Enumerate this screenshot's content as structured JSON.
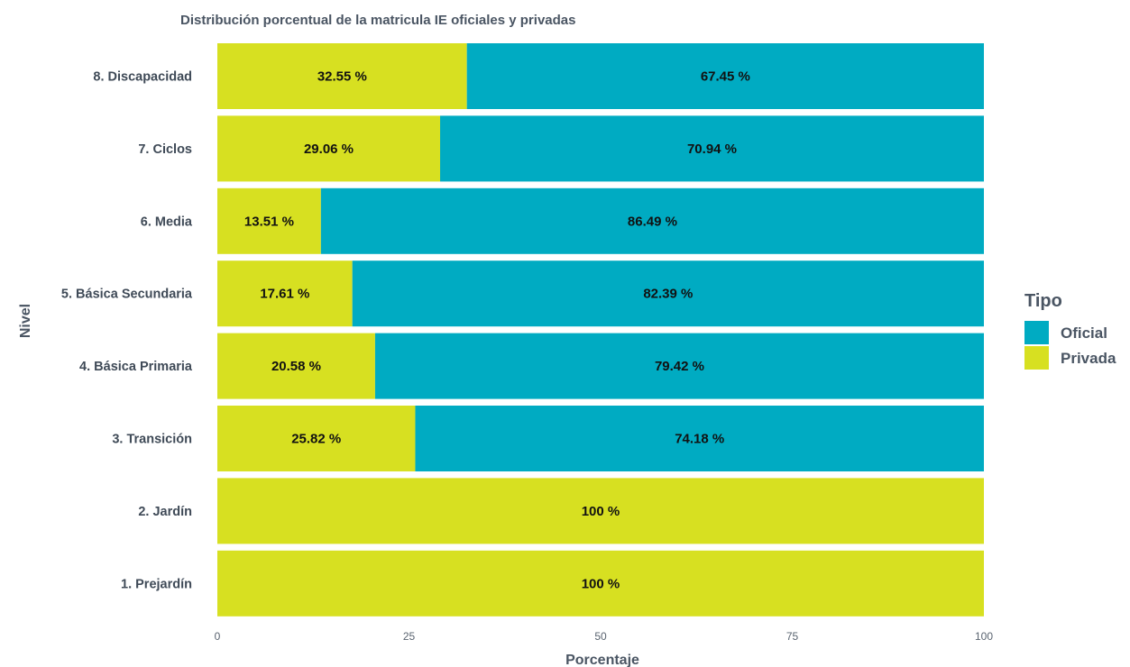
{
  "chart_data": {
    "type": "bar",
    "orientation": "horizontal",
    "stacked": true,
    "title": "Distribución porcentual de la matricula IE oficiales y privadas",
    "xlabel": "Porcentaje",
    "ylabel": "Nivel",
    "xlim": [
      0,
      100
    ],
    "xticks": [
      "0",
      "25",
      "50",
      "75",
      "100"
    ],
    "grid": false,
    "legend_position": "right",
    "legend": {
      "title": "Tipo",
      "entries": [
        {
          "name": "Oficial",
          "color": "#00abc2"
        },
        {
          "name": "Privada",
          "color": "#d7e021"
        }
      ]
    },
    "categories": [
      "8. Discapacidad",
      "7. Ciclos",
      "6. Media",
      "5. Básica Secundaria",
      "4. Básica Primaria",
      "3. Transición",
      "2. Jardín",
      "1. Prejardín"
    ],
    "series": [
      {
        "name": "Privada",
        "color": "#d7e021",
        "values": [
          32.55,
          29.06,
          13.51,
          17.61,
          20.58,
          25.82,
          100,
          100
        ],
        "labels": [
          "32.55 %",
          "29.06 %",
          "13.51 %",
          "17.61 %",
          "20.58 %",
          "25.82 %",
          "100 %",
          "100 %"
        ]
      },
      {
        "name": "Oficial",
        "color": "#00abc2",
        "values": [
          67.45,
          70.94,
          86.49,
          82.39,
          79.42,
          74.18,
          0,
          0
        ],
        "labels": [
          "67.45 %",
          "70.94 %",
          "86.49 %",
          "82.39 %",
          "79.42 %",
          "74.18 %",
          "",
          ""
        ]
      }
    ]
  }
}
